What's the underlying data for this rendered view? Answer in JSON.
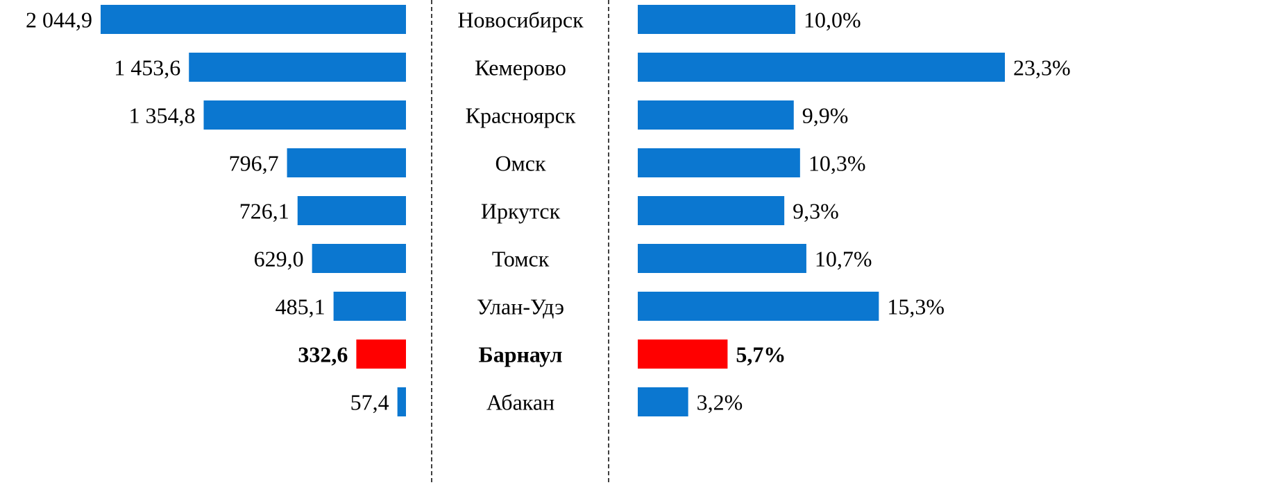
{
  "chart_data": {
    "type": "bar",
    "categories": [
      "Новосибирск",
      "Кемерово",
      "Красноярск",
      "Омск",
      "Иркутск",
      "Томск",
      "Улан-Удэ",
      "Барнаул",
      "Абакан"
    ],
    "series": [
      {
        "values": [
          2044.9,
          1453.6,
          1354.8,
          796.7,
          726.1,
          629.0,
          485.1,
          332.6,
          57.4
        ],
        "value_labels": [
          "2 044,9",
          "1 453,6",
          "1 354,8",
          "796,7",
          "726,1",
          "629,0",
          "485,1",
          "332,6",
          "57,4"
        ],
        "colors": [
          "#0b77d0",
          "#0b77d0",
          "#0b77d0",
          "#0b77d0",
          "#0b77d0",
          "#0b77d0",
          "#0b77d0",
          "#ff0000",
          "#0b77d0"
        ]
      },
      {
        "values": [
          10.0,
          23.3,
          9.9,
          10.3,
          9.3,
          10.7,
          15.3,
          5.7,
          3.2
        ],
        "value_labels": [
          "10,0%",
          "23,3%",
          "9,9%",
          "10,3%",
          "9,3%",
          "10,7%",
          "15,3%",
          "5,7%",
          "3,2%"
        ],
        "colors": [
          "#0b77d0",
          "#0b77d0",
          "#0b77d0",
          "#0b77d0",
          "#0b77d0",
          "#0b77d0",
          "#0b77d0",
          "#ff0000",
          "#0b77d0"
        ]
      }
    ]
  }
}
